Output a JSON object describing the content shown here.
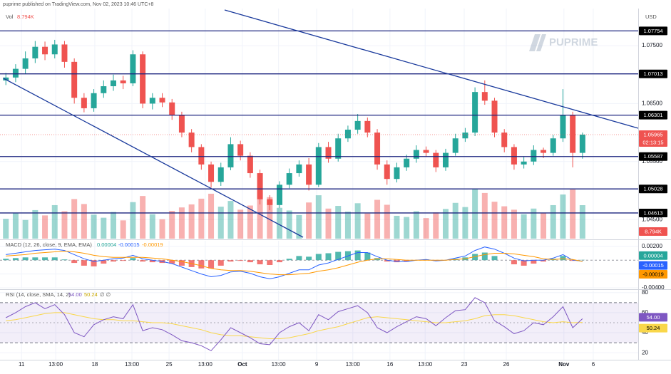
{
  "header": "puprime published on TradingView.com, Nov 02, 2023 10:46 UTC+8",
  "watermark": "PUPRIME",
  "chart_data": [
    {
      "type": "candlestick",
      "currency": "USD",
      "legend_label": "Vol",
      "volume_label": "8.794K",
      "countdown": "02:13:15",
      "up_color": "#26a69a",
      "down_color": "#ef5350",
      "level_color": "#1a237e",
      "xlim": [
        -0.6,
        64.7
      ],
      "xticks": [
        {
          "value": 1.6,
          "label": "11"
        },
        {
          "value": 5.1,
          "label": "13:00"
        },
        {
          "value": 9.1,
          "label": "18"
        },
        {
          "value": 12.9,
          "label": "13:00"
        },
        {
          "value": 16.7,
          "label": "25"
        },
        {
          "value": 20.4,
          "label": "13:00"
        },
        {
          "value": 24.2,
          "label": "Oct"
        },
        {
          "value": 27.9,
          "label": "13:00"
        },
        {
          "value": 31.8,
          "label": "9"
        },
        {
          "value": 35.5,
          "label": "13:00"
        },
        {
          "value": 39.3,
          "label": "16"
        },
        {
          "value": 42.9,
          "label": "13:00"
        },
        {
          "value": 46.9,
          "label": "23"
        },
        {
          "value": 51.2,
          "label": "26"
        },
        {
          "value": 57.1,
          "label": "Nov"
        },
        {
          "value": 60.1,
          "label": "6"
        }
      ],
      "ylim": [
        1.0417,
        1.0814
      ],
      "yticks": [
        {
          "value": 1.045,
          "label": "1.04500"
        },
        {
          "value": 1.055,
          "label": "1.05500"
        },
        {
          "value": 1.065,
          "label": "1.06500"
        },
        {
          "value": 1.075,
          "label": "1.07500"
        }
      ],
      "levels": [
        1.07754,
        1.07013,
        1.06301,
        1.05587,
        1.05028,
        1.04613
      ],
      "open": [
        1.069,
        1.0695,
        1.071,
        1.0728,
        1.0748,
        1.0735,
        1.0752,
        1.0722,
        1.066,
        1.0642,
        1.0668,
        1.068,
        1.069,
        1.0685,
        1.0735,
        1.065,
        1.066,
        1.0652,
        1.063,
        1.06,
        1.0575,
        1.0545,
        1.0515,
        1.054,
        1.058,
        1.056,
        1.053,
        1.0485,
        1.0475,
        1.051,
        1.053,
        1.0545,
        1.051,
        1.0575,
        1.0555,
        1.059,
        1.0605,
        1.062,
        1.06,
        1.0545,
        1.052,
        1.054,
        1.0555,
        1.057,
        1.0565,
        1.054,
        1.0565,
        1.059,
        1.06,
        1.067,
        1.0655,
        1.06,
        1.0575,
        1.0545,
        1.055,
        1.057,
        1.0565,
        1.059,
        1.063,
        1.0565
      ],
      "high": [
        1.0703,
        1.0718,
        1.074,
        1.0758,
        1.0757,
        1.076,
        1.0758,
        1.0728,
        1.0668,
        1.0675,
        1.069,
        1.07,
        1.0698,
        1.0742,
        1.074,
        1.0668,
        1.0668,
        1.0658,
        1.0636,
        1.0606,
        1.058,
        1.055,
        1.0548,
        1.0592,
        1.0586,
        1.0566,
        1.0536,
        1.0492,
        1.0516,
        1.0538,
        1.0552,
        1.0556,
        1.0582,
        1.0584,
        1.0598,
        1.0612,
        1.0632,
        1.0626,
        1.0606,
        1.0552,
        1.0548,
        1.0562,
        1.0578,
        1.0576,
        1.057,
        1.0572,
        1.0598,
        1.0608,
        1.0678,
        1.069,
        1.066,
        1.0606,
        1.058,
        1.0558,
        1.0578,
        1.0574,
        1.0596,
        1.0675,
        1.0636,
        1.06
      ],
      "low": [
        1.0682,
        1.0687,
        1.0702,
        1.072,
        1.0725,
        1.0728,
        1.0712,
        1.065,
        1.0635,
        1.0636,
        1.066,
        1.0672,
        1.0675,
        1.068,
        1.0642,
        1.064,
        1.0644,
        1.0622,
        1.0592,
        1.0566,
        1.0536,
        1.0505,
        1.0508,
        1.0535,
        1.0552,
        1.0522,
        1.0476,
        1.0466,
        1.047,
        1.0504,
        1.0524,
        1.05,
        1.0506,
        1.0548,
        1.055,
        1.0584,
        1.0598,
        1.0592,
        1.0536,
        1.051,
        1.0514,
        1.0534,
        1.0548,
        1.0558,
        1.0532,
        1.0534,
        1.056,
        1.0584,
        1.0594,
        1.0648,
        1.0592,
        1.0566,
        1.0536,
        1.0538,
        1.0544,
        1.0556,
        1.056,
        1.0584,
        1.054,
        1.0555
      ],
      "close": [
        1.0695,
        1.071,
        1.0728,
        1.0748,
        1.0735,
        1.0752,
        1.0722,
        1.066,
        1.0642,
        1.0668,
        1.068,
        1.069,
        1.0685,
        1.0735,
        1.065,
        1.066,
        1.0652,
        1.063,
        1.06,
        1.0575,
        1.0545,
        1.0515,
        1.054,
        1.058,
        1.056,
        1.053,
        1.0485,
        1.0475,
        1.051,
        1.053,
        1.0545,
        1.051,
        1.0575,
        1.0555,
        1.059,
        1.0605,
        1.062,
        1.06,
        1.0545,
        1.052,
        1.054,
        1.0555,
        1.057,
        1.0565,
        1.054,
        1.0565,
        1.059,
        1.06,
        1.067,
        1.0655,
        1.06,
        1.0575,
        1.0545,
        1.055,
        1.057,
        1.0565,
        1.059,
        1.063,
        1.0565,
        1.05965
      ],
      "volume": [
        5.2,
        6.8,
        4.9,
        7.5,
        6.1,
        8.8,
        7.2,
        10.4,
        9.1,
        6.3,
        5.5,
        7.0,
        4.8,
        9.6,
        11.2,
        6.4,
        5.1,
        7.3,
        8.2,
        9.0,
        10.5,
        11.8,
        8.4,
        9.9,
        7.6,
        8.7,
        12.4,
        10.9,
        8.1,
        7.4,
        6.2,
        9.5,
        11.4,
        7.9,
        8.6,
        7.1,
        9.3,
        6.6,
        10.2,
        8.9,
        6.0,
        5.7,
        7.2,
        5.4,
        6.9,
        7.8,
        9.4,
        8.3,
        13.1,
        12.0,
        9.7,
        8.5,
        7.6,
        6.4,
        7.9,
        6.8,
        8.8,
        11.6,
        12.9,
        8.794
      ]
    },
    {
      "type": "macd",
      "title": "MACD (12, 26, close, 9, EMA, EMA)",
      "hist_up": "#26a69a",
      "hist_down": "#ef5350",
      "macd_color": "#2962ff",
      "signal_color": "#ff9800",
      "ylim": [
        -0.0041,
        0.0028
      ],
      "yticks": [
        {
          "value": 0.002,
          "label": "0.00200"
        },
        {
          "value": -0.002,
          "label": "-0.00200"
        },
        {
          "value": -0.004,
          "label": "-0.00400"
        }
      ],
      "histogram": [
        0.0002,
        0.0003,
        0.0004,
        0.0004,
        0.0004,
        0.0004,
        0.0001,
        -0.0004,
        -0.0008,
        -0.0009,
        -0.0005,
        -0.0002,
        -0.0001,
        0.0003,
        -0.0002,
        -0.0003,
        -0.0004,
        -0.0005,
        -0.0008,
        -0.001,
        -0.0012,
        -0.0012,
        -0.0008,
        -0.0002,
        -0.0001,
        -0.0003,
        -0.0006,
        -0.0007,
        -0.0003,
        0.0002,
        0.0006,
        0.0005,
        0.0009,
        0.001,
        0.0012,
        0.0013,
        0.0014,
        0.0011,
        0.0003,
        -0.0002,
        -0.0003,
        -0.0002,
        0.0,
        0.0001,
        -0.0001,
        0.0,
        0.0002,
        0.0004,
        0.0009,
        0.0011,
        0.0006,
        0.0,
        -0.0006,
        -0.0008,
        -0.0005,
        -0.0002,
        0.0002,
        0.0006,
        -0.0001,
        4e-05
      ],
      "macd": [
        0.0008,
        0.001,
        0.0012,
        0.0014,
        0.0015,
        0.0016,
        0.0014,
        0.0008,
        0.0002,
        -0.0002,
        0.0,
        0.0002,
        0.0003,
        0.0007,
        0.0002,
        0.0,
        -0.0002,
        -0.0005,
        -0.001,
        -0.0015,
        -0.002,
        -0.0024,
        -0.0022,
        -0.0017,
        -0.0016,
        -0.0019,
        -0.0024,
        -0.0027,
        -0.0024,
        -0.0019,
        -0.0014,
        -0.0014,
        -0.0007,
        -0.0004,
        0.0001,
        0.0006,
        0.0011,
        0.0011,
        0.0005,
        0.0,
        -0.0002,
        -0.0002,
        0.0,
        0.0001,
        -0.0001,
        0.0,
        0.0003,
        0.0006,
        0.0014,
        0.0019,
        0.0016,
        0.001,
        0.0003,
        -0.0001,
        0.0,
        0.0,
        0.0003,
        0.0008,
        0.0,
        -0.00015
      ],
      "signal": [
        0.0006,
        0.0007,
        0.0008,
        0.001,
        0.0011,
        0.0012,
        0.0013,
        0.0012,
        0.001,
        0.0007,
        0.0005,
        0.0004,
        0.0004,
        0.0004,
        0.0004,
        0.0003,
        0.0002,
        0.0,
        -0.0002,
        -0.0005,
        -0.0008,
        -0.0012,
        -0.0014,
        -0.0015,
        -0.0015,
        -0.0016,
        -0.0018,
        -0.002,
        -0.0021,
        -0.0021,
        -0.002,
        -0.0019,
        -0.0016,
        -0.0014,
        -0.0011,
        -0.0007,
        -0.0003,
        0.0,
        0.0002,
        0.0002,
        0.0001,
        0.0,
        0.0,
        0.0,
        0.0,
        0.0,
        0.0001,
        0.0002,
        0.0005,
        0.0008,
        0.001,
        0.001,
        0.0009,
        0.0007,
        0.0005,
        0.0002,
        0.0001,
        0.0002,
        0.0001,
        -0.00019
      ]
    },
    {
      "type": "rsi",
      "title": "RSI (14, close, SMA, 14, 2)",
      "rsi_label": "54.00",
      "legend_extra": "∅ ∅",
      "rsi_color": "#7e57c2",
      "ma_color": "#f9d74a",
      "ylim": [
        13,
        82
      ],
      "yticks": [
        80,
        60,
        40,
        20
      ],
      "bands": [
        30,
        70
      ],
      "middle": 50,
      "rsi": [
        55,
        60,
        66,
        70,
        64,
        68,
        58,
        40,
        36,
        48,
        53,
        56,
        54,
        68,
        42,
        45,
        43,
        38,
        32,
        30,
        27,
        22,
        33,
        45,
        40,
        35,
        29,
        28,
        40,
        46,
        50,
        42,
        58,
        53,
        61,
        64,
        67,
        60,
        45,
        40,
        46,
        51,
        56,
        54,
        47,
        55,
        62,
        63,
        75,
        70,
        52,
        46,
        39,
        42,
        50,
        48,
        56,
        66,
        45,
        54
      ],
      "ma": [
        52,
        53,
        55,
        57,
        59,
        60,
        60,
        58,
        56,
        54,
        53,
        53,
        52,
        52,
        51,
        50,
        50,
        49,
        47,
        45,
        43,
        40,
        38,
        37,
        37,
        36,
        35,
        34,
        34,
        35,
        37,
        39,
        42,
        44,
        46,
        49,
        52,
        55,
        56,
        55,
        54,
        53,
        52,
        51,
        50,
        50,
        51,
        52,
        54,
        57,
        58,
        58,
        57,
        55,
        53,
        51,
        50,
        51,
        50,
        50.24
      ]
    }
  ]
}
